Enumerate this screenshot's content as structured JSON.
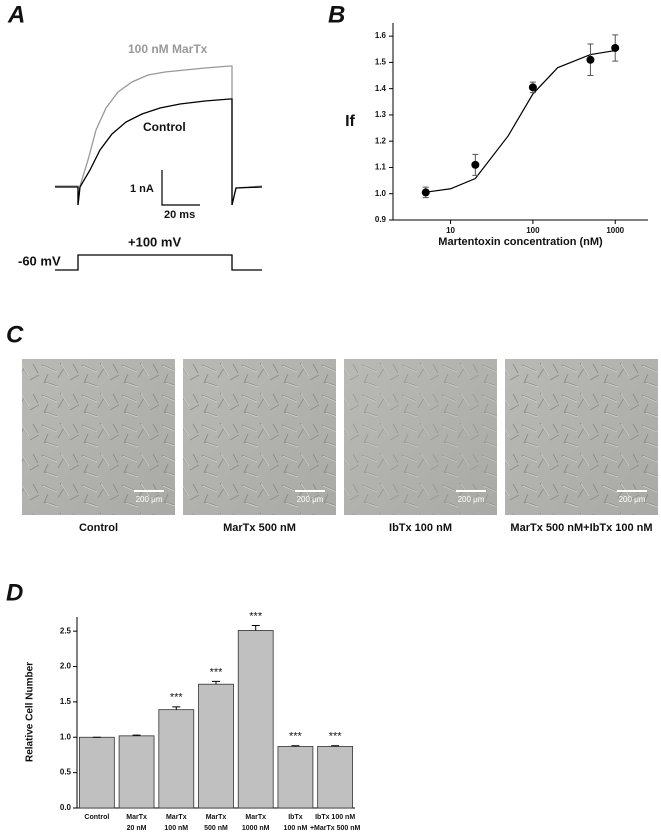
{
  "panel_labels": [
    "A",
    "B",
    "C",
    "D"
  ],
  "panel_a": {
    "trace_labels": [
      "100 nM MarTx",
      "Control"
    ],
    "scale_bar": {
      "current": "1 nA",
      "time": "20 ms"
    },
    "voltage": {
      "holding": "-60 mV",
      "step": "+100 mV"
    }
  },
  "panel_c": {
    "images": [
      {
        "caption": "Control",
        "scale": "200 μm"
      },
      {
        "caption": "MarTx 500 nM",
        "scale": "200 μm"
      },
      {
        "caption": "IbTx 100 nM",
        "scale": "200 μm"
      },
      {
        "caption": "MarTx 500 nM+IbTx 100 nM",
        "scale": "200 μm"
      }
    ]
  },
  "chart_data": [
    {
      "type": "scatter",
      "x_label": "Martentoxin concentration (nM)",
      "y_label": "If",
      "x": [
        5,
        20,
        100,
        500,
        1000
      ],
      "values": [
        1.005,
        1.11,
        1.405,
        1.51,
        1.555
      ],
      "errors": [
        0.02,
        0.04,
        0.02,
        0.06,
        0.05
      ],
      "fit": {
        "x": [
          5,
          10,
          20,
          50,
          100,
          200,
          500,
          1000
        ],
        "values": [
          1.006,
          1.019,
          1.058,
          1.22,
          1.38,
          1.48,
          1.53,
          1.545
        ]
      },
      "color": "#000000",
      "xscale": "log",
      "xlim": [
        2,
        2500
      ],
      "xticks": [
        10,
        100,
        1000
      ],
      "ylim": [
        0.9,
        1.65
      ],
      "yticks": [
        0.9,
        {
          "value": 1.0,
          "label": "1.0"
        },
        1.1,
        1.2,
        1.3,
        1.4,
        1.5,
        1.6
      ]
    },
    {
      "type": "bar",
      "y_label": "Relative Cell Number",
      "categories": [
        [
          "Control"
        ],
        [
          "MarTx",
          "20 nM"
        ],
        [
          "MarTx",
          "100 nM"
        ],
        [
          "MarTx",
          "500 nM"
        ],
        [
          "MarTx",
          "1000 nM"
        ],
        [
          "IbTx",
          "100 nM"
        ],
        [
          "IbTx 100 nM",
          "+MarTx 500 nM"
        ]
      ],
      "values": [
        1.0,
        1.02,
        1.39,
        1.75,
        2.51,
        0.87,
        0.87
      ],
      "errors": [
        0,
        0.01,
        0.04,
        0.04,
        0.07,
        0.01,
        0.01
      ],
      "annotations": [
        null,
        null,
        "***",
        "***",
        "***",
        "***",
        "***"
      ],
      "color": "#c0c0c0",
      "ylim": [
        0,
        2.7
      ],
      "yticks": [
        {
          "value": 0,
          "label": "0.0"
        },
        0.5,
        {
          "value": 1,
          "label": "1.0"
        },
        1.5,
        {
          "value": 2,
          "label": "2.0"
        },
        2.5
      ]
    }
  ]
}
